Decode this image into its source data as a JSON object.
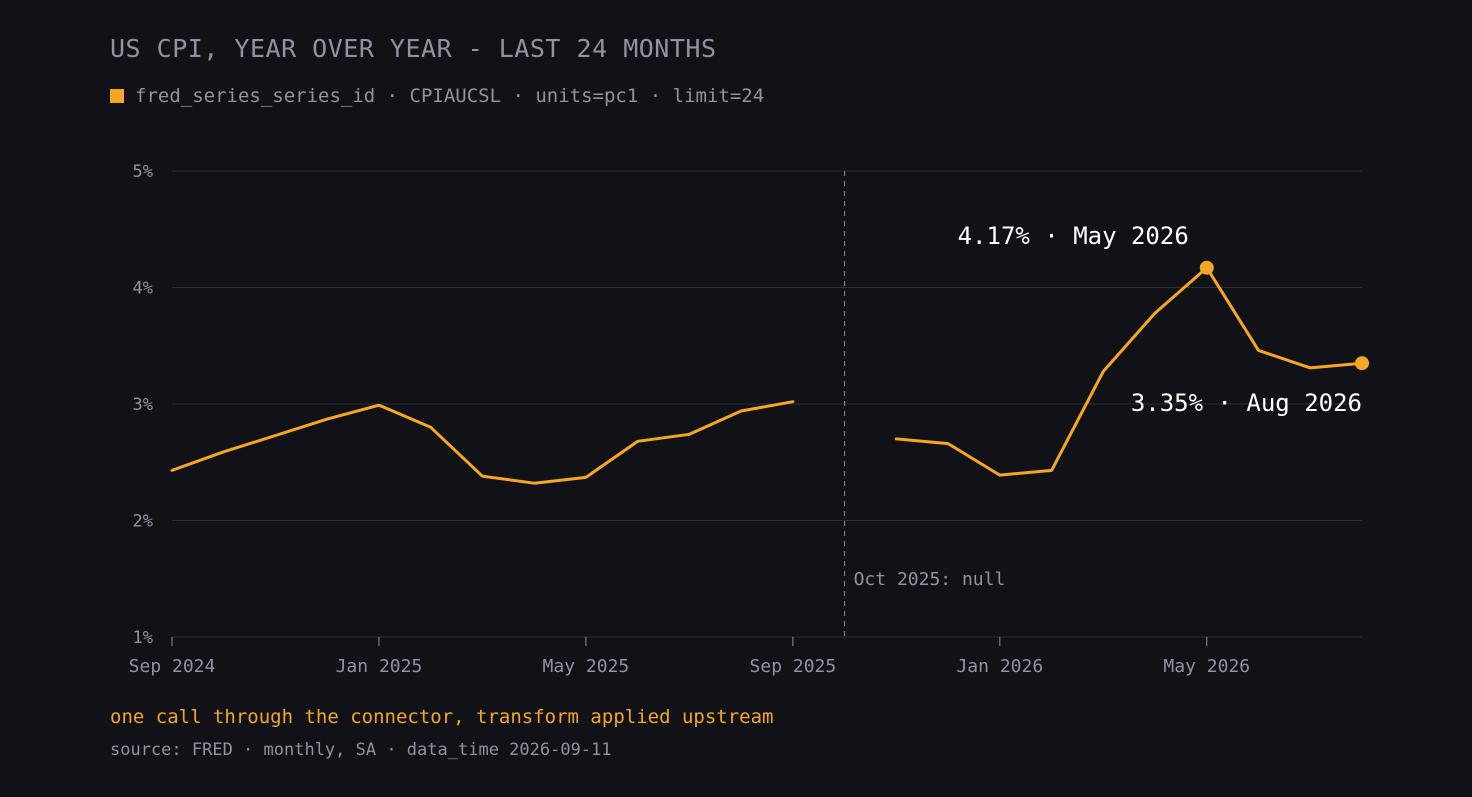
{
  "header": {
    "title": "US CPI, YEAR OVER YEAR - LAST 24 MONTHS",
    "legend": "fred_series_series_id · CPIAUCSL · units=pc1 · limit=24"
  },
  "footer": {
    "caption": "one call through the connector, transform applied upstream",
    "source": "source: FRED · monthly, SA · data_time 2026-09-11"
  },
  "colors": {
    "background": "#111217",
    "series": "#f5a623",
    "grid": "#2c2f38",
    "muted_text": "#8f93a2",
    "highlight_text": "#ffffff",
    "caption": "#f5a623"
  },
  "chart_data": {
    "type": "line",
    "title": "US CPI, YEAR OVER YEAR - LAST 24 MONTHS",
    "xlabel": "",
    "ylabel": "",
    "x": [
      "Sep 2024",
      "Oct 2024",
      "Nov 2024",
      "Dec 2024",
      "Jan 2025",
      "Feb 2025",
      "Mar 2025",
      "Apr 2025",
      "May 2025",
      "Jun 2025",
      "Jul 2025",
      "Aug 2025",
      "Sep 2025",
      "Oct 2025",
      "Nov 2025",
      "Dec 2025",
      "Jan 2026",
      "Feb 2026",
      "Mar 2026",
      "Apr 2026",
      "May 2026",
      "Jun 2026",
      "Jul 2026",
      "Aug 2026"
    ],
    "series": [
      {
        "values": [
          2.43,
          2.59,
          2.73,
          2.87,
          2.99,
          2.8,
          2.38,
          2.32,
          2.37,
          2.68,
          2.74,
          2.94,
          3.02,
          null,
          2.7,
          2.66,
          2.39,
          2.43,
          3.28,
          3.78,
          4.17,
          3.46,
          3.31,
          3.35
        ]
      }
    ],
    "ylim": [
      1,
      5
    ],
    "yticks": [
      1,
      2,
      3,
      4,
      5
    ],
    "ytick_labels": [
      "1%",
      "2%",
      "3%",
      "4%",
      "5%"
    ],
    "xticks": [
      "Sep 2024",
      "Jan 2025",
      "May 2025",
      "Sep 2025",
      "Jan 2026",
      "May 2026"
    ],
    "grid": true,
    "annotations": [
      {
        "text": "4.17% · May 2026",
        "x": "May 2026",
        "y": 4.17
      },
      {
        "text": "3.35% · Aug 2026",
        "x": "Aug 2026",
        "y": 3.35
      },
      {
        "text": "Oct 2025: null",
        "x": "Oct 2025"
      }
    ],
    "marked_points": [
      "May 2026",
      "Aug 2026"
    ],
    "gap_marker": "Oct 2025"
  }
}
